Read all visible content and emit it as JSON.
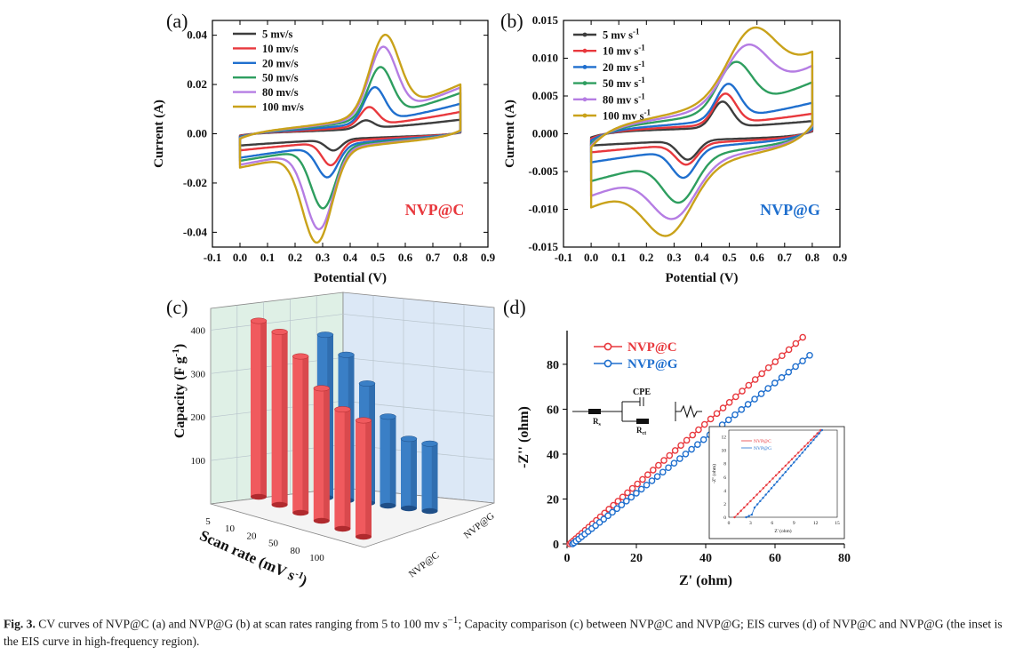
{
  "chart_data": [
    {
      "panel": "(a)",
      "type": "line",
      "label": "NVP@C",
      "label_color": "#e8383d",
      "xlabel": "Potential (V)",
      "ylabel": "Current (A)",
      "xlim": [
        -0.1,
        0.9
      ],
      "ylim": [
        -0.046,
        0.046
      ],
      "xticks": [
        "-0.1",
        "0.0",
        "0.1",
        "0.2",
        "0.3",
        "0.4",
        "0.5",
        "0.6",
        "0.7",
        "0.8",
        "0.9"
      ],
      "yticks": [
        "-0.04",
        "-0.02",
        "0.00",
        "0.02",
        "0.04"
      ],
      "series": [
        {
          "name": "5 mv/s",
          "color": "#3d3d3d",
          "ox": 0.456,
          "ahw": 0.04,
          "ap": 0.0058,
          "aw": 0.005,
          "rx": 0.34,
          "chw": 0.04,
          "cp": -0.0062,
          "cw": -0.0045,
          "base": 0.0,
          "wt": 0.0012
        },
        {
          "name": "10 mv/s",
          "color": "#e8383d",
          "ox": 0.468,
          "ahw": 0.045,
          "ap": 0.0115,
          "aw": 0.008,
          "rx": 0.33,
          "chw": 0.045,
          "cp": -0.012,
          "cw": -0.0065,
          "base": 0.0,
          "wt": 0.0015
        },
        {
          "name": "20 mv/s",
          "color": "#1f6fce",
          "ox": 0.488,
          "ahw": 0.053,
          "ap": 0.0195,
          "aw": 0.011,
          "rx": 0.318,
          "chw": 0.053,
          "cp": -0.0165,
          "cw": -0.0095,
          "base": 0.0,
          "wt": 0.002
        },
        {
          "name": "50 mv/s",
          "color": "#2e9e5f",
          "ox": 0.508,
          "ahw": 0.062,
          "ap": 0.0275,
          "aw": 0.015,
          "rx": 0.302,
          "chw": 0.062,
          "cp": -0.0285,
          "cw": -0.0105,
          "base": 0.0,
          "wt": 0.0026
        },
        {
          "name": "80 mv/s",
          "color": "#b57de3",
          "ox": 0.518,
          "ahw": 0.07,
          "ap": 0.0355,
          "aw": 0.017,
          "rx": 0.288,
          "chw": 0.07,
          "cp": -0.0365,
          "cw": -0.012,
          "base": 0.0,
          "wt": 0.003
        },
        {
          "name": "100 mv/s",
          "color": "#c9a21a",
          "ox": 0.525,
          "ahw": 0.075,
          "ap": 0.04,
          "aw": 0.018,
          "rx": 0.28,
          "chw": 0.075,
          "cp": -0.0415,
          "cw": -0.013,
          "base": 0.0,
          "wt": 0.0034
        }
      ]
    },
    {
      "panel": "(b)",
      "type": "line",
      "label": "NVP@G",
      "label_color": "#1f6fce",
      "xlabel": "Potential (V)",
      "ylabel": "Current (A)",
      "xlim": [
        -0.1,
        0.9
      ],
      "ylim": [
        -0.015,
        0.015
      ],
      "xticks": [
        "-0.1",
        "0.0",
        "0.1",
        "0.2",
        "0.3",
        "0.4",
        "0.5",
        "0.6",
        "0.7",
        "0.8",
        "0.9"
      ],
      "yticks": [
        "-0.015",
        "-0.010",
        "-0.005",
        "0.000",
        "0.005",
        "0.010",
        "0.015"
      ],
      "series": [
        {
          "name": "5 mv s",
          "unit": "-1",
          "color": "#3d3d3d",
          "ox": 0.475,
          "ahw": 0.05,
          "ap": 0.004,
          "aw": 0.0012,
          "rx": 0.35,
          "chw": 0.05,
          "cp": -0.003,
          "cw": -0.0012,
          "base": 0.0,
          "wt": 0.0008
        },
        {
          "name": "10 mv s",
          "unit": "-1",
          "color": "#e8383d",
          "ox": 0.485,
          "ahw": 0.055,
          "ap": 0.005,
          "aw": 0.002,
          "rx": 0.345,
          "chw": 0.055,
          "cp": -0.0035,
          "cw": -0.002,
          "base": 0.0,
          "wt": 0.0011
        },
        {
          "name": "20 mv s",
          "unit": "-1",
          "color": "#1f6fce",
          "ox": 0.495,
          "ahw": 0.06,
          "ap": 0.0062,
          "aw": 0.0032,
          "rx": 0.335,
          "chw": 0.06,
          "cp": -0.005,
          "cw": -0.0032,
          "base": 0.0,
          "wt": 0.0015
        },
        {
          "name": "50 mv s",
          "unit": "-1",
          "color": "#2e9e5f",
          "ox": 0.52,
          "ahw": 0.085,
          "ap": 0.0088,
          "aw": 0.0055,
          "rx": 0.32,
          "chw": 0.085,
          "cp": -0.0078,
          "cw": -0.0055,
          "base": 0.0,
          "wt": 0.0022
        },
        {
          "name": "80 mv s",
          "unit": "-1",
          "color": "#b57de3",
          "ox": 0.56,
          "ahw": 0.11,
          "ap": 0.0105,
          "aw": 0.0074,
          "rx": 0.3,
          "chw": 0.11,
          "cp": -0.0095,
          "cw": -0.0074,
          "base": 0.0,
          "wt": 0.0026
        },
        {
          "name": "100 mv s",
          "unit": "-1",
          "color": "#c9a21a",
          "ox": 0.58,
          "ahw": 0.12,
          "ap": 0.0122,
          "aw": 0.0088,
          "rx": 0.28,
          "chw": 0.12,
          "cp": -0.0112,
          "cw": -0.0088,
          "base": 0.0,
          "wt": 0.003
        }
      ]
    },
    {
      "panel": "(c)",
      "type": "bar3d",
      "ylabel": "Capacity (F g",
      "ylabel_sup": "-1",
      "ylabel_end": ")",
      "xlabel": "Scan rate (mV s",
      "xlabel_sup": "-1",
      "xlabel_end": ")",
      "zlim": [
        0,
        450
      ],
      "zticks": [
        "100",
        "200",
        "300",
        "400"
      ],
      "categories": [
        "5",
        "10",
        "20",
        "50",
        "80",
        "100"
      ],
      "rows": [
        "NVP@C",
        "NVP@G"
      ],
      "series": [
        {
          "name": "NVP@C",
          "color": "#f05a5e",
          "values": [
            405,
            398,
            360,
            305,
            275,
            268
          ]
        },
        {
          "name": "NVP@G",
          "color": "#3a7fc6",
          "values": [
            375,
            335,
            275,
            205,
            160,
            155
          ]
        }
      ]
    },
    {
      "panel": "(d)",
      "type": "scatter",
      "xlabel": "Z' (ohm)",
      "ylabel": "-Z'' (ohm)",
      "xlim": [
        0,
        80
      ],
      "ylim": [
        0,
        95
      ],
      "xticks": [
        "0",
        "20",
        "40",
        "60",
        "80"
      ],
      "yticks": [
        "0",
        "20",
        "40",
        "60",
        "80"
      ],
      "series": [
        {
          "name": "NVP@C",
          "color": "#e8383d",
          "x0": 0.8,
          "x1": 68,
          "y1": 92,
          "npts": 46
        },
        {
          "name": "NVP@G",
          "color": "#1f6fce",
          "x0": 1.6,
          "x1": 70,
          "y1": 84,
          "npts": 46
        }
      ],
      "circuit": {
        "cpe": "CPE",
        "rs": "R",
        "rs_sub": "s",
        "rct": "R",
        "rct_sub": "ct"
      },
      "inset": {
        "xlabel": "Z' (ohm)",
        "ylabel": "-Z'' (ohm)",
        "xlim": [
          0,
          15
        ],
        "ylim": [
          0,
          13
        ],
        "xticks": [
          "0",
          "3",
          "6",
          "9",
          "12",
          "15"
        ],
        "yticks": [
          "0",
          "2",
          "4",
          "6",
          "8",
          "10",
          "12"
        ],
        "legend": [
          "NVP@C",
          "NVP@G"
        ]
      }
    }
  ],
  "caption": {
    "label": "Fig. 3.",
    "text_before_sup": "CV curves of NVP@C (a) and NVP@G (b) at scan rates ranging from 5 to 100 mv s",
    "sup": "−1",
    "text_after_sup": "; Capacity comparison (c) between NVP@C and NVP@G; EIS curves (d) of NVP@C and NVP@G (the inset is the EIS curve in high-frequency region)."
  }
}
